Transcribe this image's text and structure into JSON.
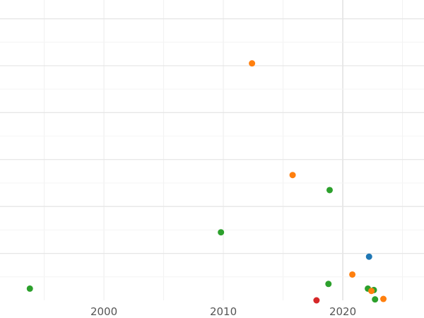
{
  "chart_data": {
    "type": "scatter",
    "title": "",
    "xlabel": "",
    "ylabel": "",
    "xlim": [
      1991.3,
      2026.8
    ],
    "ylim": [
      0,
      64
    ],
    "grid": true,
    "x_ticks": [
      2000,
      2010,
      2020
    ],
    "x_tick_labels": [
      "2000",
      "2010",
      "2020"
    ],
    "y_grid_values": [
      10,
      20,
      30,
      40,
      50,
      60
    ],
    "series": [
      {
        "color": "#2ca02c",
        "points": [
          {
            "x": 1993.8,
            "y": 2.5
          },
          {
            "x": 2009.8,
            "y": 14.5
          },
          {
            "x": 2018.9,
            "y": 23.5
          },
          {
            "x": 2018.8,
            "y": 3.5
          },
          {
            "x": 2022.1,
            "y": 2.5
          },
          {
            "x": 2022.6,
            "y": 2.2
          },
          {
            "x": 2022.7,
            "y": 0.2
          }
        ]
      },
      {
        "color": "#ff7f0e",
        "points": [
          {
            "x": 2012.4,
            "y": 50.5
          },
          {
            "x": 2015.8,
            "y": 26.7
          },
          {
            "x": 2020.8,
            "y": 5.5
          },
          {
            "x": 2022.4,
            "y": 2.0
          },
          {
            "x": 2023.4,
            "y": 0.3
          }
        ]
      },
      {
        "color": "#1f77b4",
        "points": [
          {
            "x": 2022.2,
            "y": 9.3
          }
        ]
      },
      {
        "color": "#d62728",
        "points": [
          {
            "x": 2017.8,
            "y": 0.0
          }
        ]
      }
    ]
  }
}
